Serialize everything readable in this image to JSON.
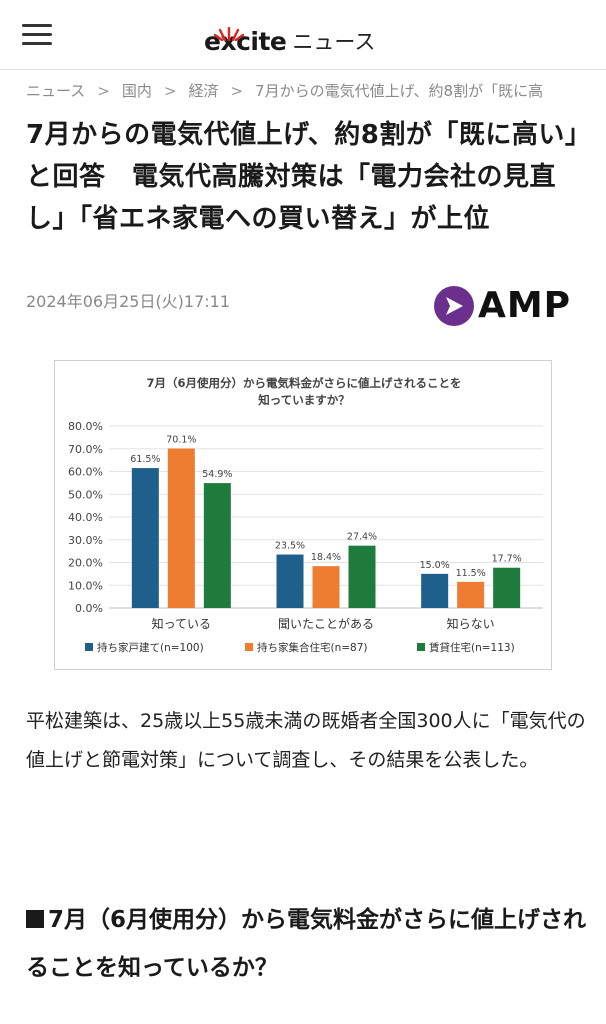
{
  "header": {
    "logo_text": "excite",
    "logo_suffix": "ニュース",
    "menu_icon": "hamburger-menu-icon"
  },
  "breadcrumb": {
    "items": [
      "ニュース",
      "国内",
      "経済",
      "7月からの電気代値上げ、約8割が「既に高"
    ],
    "separator": ">"
  },
  "article": {
    "title": "7月からの電気代値上げ、約8割が「既に高い」と回答　電気代高騰対策は「電力会社の見直し」「省エネ家電への買い替え」が上位",
    "date": "2024年06月25日(火)17:11",
    "amp_label": "AMP",
    "body": "平松建築は、25歳以上55歳未満の既婚者全国300人に「電気代の値上げと節電対策」について調査し、その結果を公表した。",
    "section_heading": "7月（6月使用分）から電気料金がさらに値上げされることを知っているか？"
  },
  "colors": {
    "brand_red": "#e0251b",
    "amp_purple": "#6b2f8e"
  },
  "chart_data": {
    "type": "bar",
    "title": "7月（6月使用分）から電気料金がさらに値上げされることを知っていますか？",
    "title_lines": [
      "7月（6月使用分）から電気料金がさらに値上げされることを",
      "知っていますか？"
    ],
    "categories": [
      "知っている",
      "聞いたことがある",
      "知らない"
    ],
    "series": [
      {
        "name": "持ち家戸建て(n=100)",
        "values": [
          61.5,
          23.5,
          15.0
        ],
        "labels": [
          "61.5%",
          "23.5%",
          "15.0%"
        ],
        "color": "#1f5f8b"
      },
      {
        "name": "持ち家集合住宅(n=87)",
        "values": [
          70.1,
          18.4,
          11.5
        ],
        "labels": [
          "70.1%",
          "18.4%",
          "11.5%"
        ],
        "color": "#ef7d31"
      },
      {
        "name": "賃貸住宅(n=113)",
        "values": [
          54.9,
          27.4,
          17.7
        ],
        "labels": [
          "54.9%",
          "27.4%",
          "17.7%"
        ],
        "color": "#1e7b3c"
      }
    ],
    "yticks": [
      "0.0%",
      "10.0%",
      "20.0%",
      "30.0%",
      "40.0%",
      "50.0%",
      "60.0%",
      "70.0%",
      "80.0%"
    ],
    "ylim": [
      0,
      80
    ],
    "grid": true,
    "legend_position": "bottom"
  }
}
